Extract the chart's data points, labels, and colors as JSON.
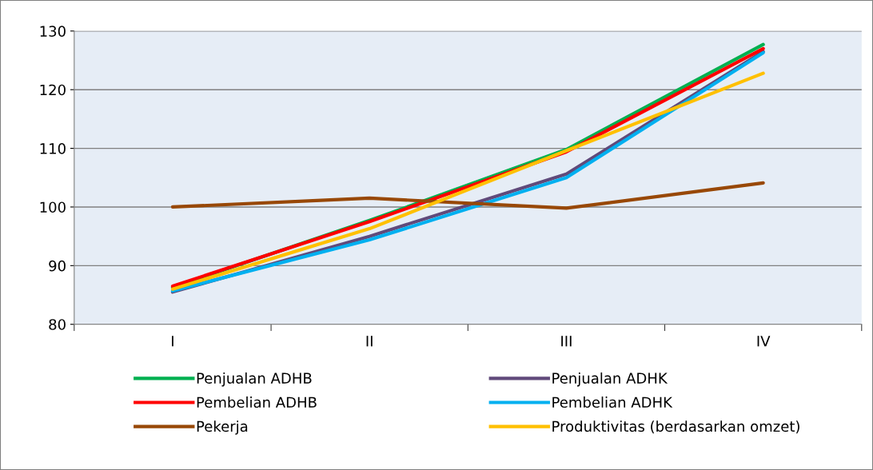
{
  "chart_data": {
    "type": "line",
    "categories": [
      "I",
      "II",
      "III",
      "IV"
    ],
    "series": [
      {
        "name": "Penjualan ADHB",
        "color": "#00b050",
        "values": [
          86.3,
          97.7,
          109.8,
          127.7
        ]
      },
      {
        "name": "Penjualan ADHK",
        "color": "#604a7b",
        "values": [
          85.5,
          95,
          105.6,
          126.5
        ]
      },
      {
        "name": "Pembelian ADHB",
        "color": "#ff0000",
        "values": [
          86.5,
          97.5,
          109.4,
          127
        ]
      },
      {
        "name": "Pembelian ADHK",
        "color": "#00b0f0",
        "values": [
          85.7,
          94.4,
          105,
          126.3
        ]
      },
      {
        "name": "Pekerja",
        "color": "#984807",
        "values": [
          100,
          101.5,
          99.8,
          104.1
        ]
      },
      {
        "name": "Produktivitas (berdasarkan omzet)",
        "color": "#ffc000",
        "values": [
          86,
          96.3,
          109.6,
          122.8
        ]
      }
    ],
    "ylim": [
      80,
      130
    ],
    "yticks": [
      80,
      90,
      100,
      110,
      120,
      130
    ],
    "grid": "y",
    "legend": "bottom",
    "marker": "none",
    "line_style": "solid"
  }
}
